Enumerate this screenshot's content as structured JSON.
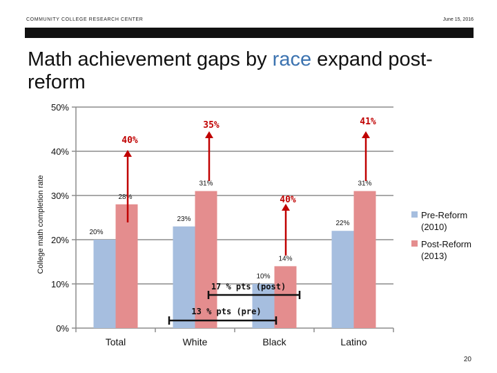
{
  "header": {
    "org": "COMMUNITY COLLEGE RESEARCH CENTER",
    "date": "June 15, 2016"
  },
  "slide": {
    "title_part1": "Math achievement gaps by ",
    "title_accent": "race",
    "title_part2": " expand post-reform",
    "page_number": "20"
  },
  "colors": {
    "pre": "#a6bedf",
    "post": "#e48d8e",
    "gap": "#c00000",
    "accent": "#3c73b0"
  },
  "chart_data": {
    "type": "bar",
    "categories": [
      "Total",
      "White",
      "Black",
      "Latino"
    ],
    "series": [
      {
        "name": "Pre-Reform (2010)",
        "values": [
          20,
          23,
          10,
          22
        ],
        "labels": [
          "20%",
          "23%",
          "10%",
          "22%"
        ]
      },
      {
        "name": "Post-Reform (2013)",
        "values": [
          28,
          31,
          14,
          31
        ],
        "labels": [
          "28%",
          "31%",
          "14%",
          "31%"
        ]
      }
    ],
    "ylabel": "College math completion rate",
    "ylim": [
      0,
      50
    ],
    "yticks": [
      "0%",
      "10%",
      "20%",
      "30%",
      "40%",
      "50%"
    ],
    "ytick_values": [
      0,
      10,
      20,
      30,
      40,
      50
    ],
    "legend": [
      "Pre-Reform",
      "(2010)",
      "Post-Reform",
      "(2013)"
    ],
    "legend_position": "right",
    "annotations": {
      "increase_labels": [
        {
          "category": "Total",
          "text": "40%"
        },
        {
          "category": "White",
          "text": "35%"
        },
        {
          "category": "Black",
          "text": "40%"
        },
        {
          "category": "Latino",
          "text": "41%"
        }
      ],
      "gap_post": "17 % pts (post)",
      "gap_pre": "13 % pts (pre)"
    }
  }
}
